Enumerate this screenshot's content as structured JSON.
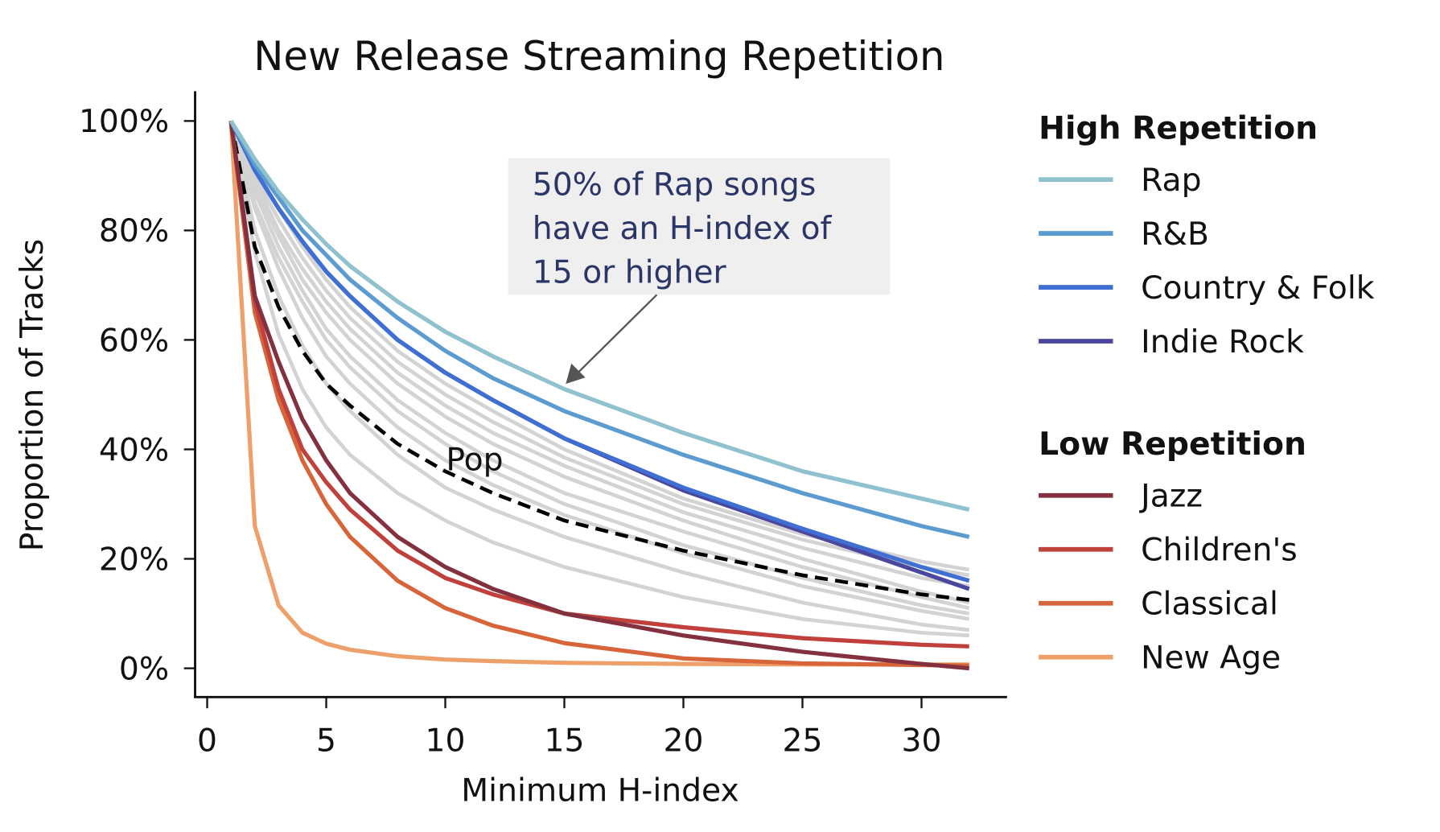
{
  "chart_data": {
    "type": "line",
    "title": "New Release Streaming Repetition",
    "xlabel": "Minimum H-index",
    "ylabel": "Proportion of Tracks",
    "xlim": [
      -0.5,
      33.5
    ],
    "ylim": [
      -5,
      106
    ],
    "xticks": [
      "0",
      "5",
      "10",
      "15",
      "20",
      "25",
      "30"
    ],
    "yticks": [
      "0%",
      "20%",
      "40%",
      "60%",
      "80%",
      "100%"
    ],
    "grid": false,
    "legend_placement": "right",
    "x": [
      1,
      2,
      3,
      4,
      5,
      6,
      8,
      10,
      12,
      15,
      20,
      25,
      30,
      32
    ],
    "background_series_color": "#d3d3d3",
    "background_series": [
      [
        100,
        91,
        84,
        77,
        71,
        66,
        58,
        52,
        47,
        40,
        31,
        24.5,
        19.5,
        18
      ],
      [
        100,
        90,
        82,
        75,
        69,
        64,
        56,
        50,
        45,
        38.5,
        30,
        23.5,
        18.5,
        17
      ],
      [
        100,
        89,
        80,
        73,
        67,
        62,
        54,
        48,
        43,
        37,
        28.5,
        22,
        16.5,
        15
      ],
      [
        100,
        88,
        79,
        71,
        65,
        60,
        52,
        46,
        41,
        35,
        27,
        20,
        14,
        12
      ],
      [
        100,
        87,
        77,
        69,
        62,
        57,
        49,
        43,
        38,
        32,
        25,
        18.5,
        13,
        11
      ],
      [
        100,
        85,
        75,
        67,
        60,
        55,
        47,
        41,
        36,
        30,
        22.5,
        16.5,
        11.5,
        10
      ],
      [
        100,
        84,
        73,
        64,
        57,
        52,
        44,
        38,
        33.5,
        28,
        21,
        15,
        10.5,
        9
      ],
      [
        100,
        80,
        68,
        59,
        52,
        47,
        39,
        33,
        29,
        24,
        17.5,
        12,
        8,
        7
      ],
      [
        100,
        76,
        61,
        51,
        44,
        39,
        32,
        27,
        23,
        18.5,
        13,
        9,
        6.5,
        6
      ]
    ],
    "pop_series": {
      "name": "Pop",
      "color": "#000000",
      "style": "dashed",
      "values": [
        100,
        77,
        66,
        58,
        52,
        48,
        41,
        36,
        32,
        27,
        21.5,
        17,
        13.5,
        12.5
      ]
    },
    "legend_groups": [
      {
        "title": "High Repetition",
        "series": [
          {
            "name": "Rap",
            "color": "#8fc1cf",
            "values": [
              100,
              93,
              87,
              82,
              77.5,
              73.5,
              67,
              61.5,
              57,
              51,
              43,
              36,
              31,
              29
            ]
          },
          {
            "name": "R&B",
            "color": "#5b9bd0",
            "values": [
              100,
              92,
              86,
              80,
              75.5,
              71,
              64,
              58,
              53,
              47,
              39,
              32,
              26,
              24
            ]
          },
          {
            "name": "Country & Folk",
            "color": "#3f6fd2",
            "values": [
              100,
              91,
              84,
              78,
              72.5,
              68,
              60,
              54,
              49,
              42,
              33,
              25.5,
              18.5,
              16
            ]
          },
          {
            "name": "Indie Rock",
            "color": "#4a479e",
            "values": [
              100,
              91,
              84,
              78,
              72.5,
              68,
              60,
              54,
              49,
              42,
              32.5,
              25,
              17.5,
              14.5
            ]
          }
        ]
      },
      {
        "title": "Low Repetition",
        "series": [
          {
            "name": "Jazz",
            "color": "#84313f",
            "values": [
              100,
              68,
              56,
              45.5,
              38,
              32,
              24,
              18.5,
              14.5,
              10,
              6,
              3,
              0.8,
              0
            ]
          },
          {
            "name": "Children's",
            "color": "#c0413b",
            "values": [
              100,
              67,
              51,
              40,
              34,
              29,
              21.5,
              16.5,
              13.5,
              10,
              7.5,
              5.5,
              4.3,
              4
            ]
          },
          {
            "name": "Classical",
            "color": "#d8653a",
            "values": [
              100,
              65,
              49,
              38,
              30,
              24,
              16,
              11,
              7.8,
              4.6,
              1.8,
              0.9,
              0.6,
              0.5
            ]
          },
          {
            "name": "New Age",
            "color": "#eda06a",
            "values": [
              100,
              26,
              11.5,
              6.5,
              4.5,
              3.4,
              2.2,
              1.6,
              1.3,
              1.0,
              0.8,
              0.7,
              0.7,
              0.7
            ]
          }
        ]
      }
    ],
    "annotation": {
      "lines": [
        "50% of Rap songs",
        "have an H-index of",
        "15 or higher"
      ],
      "points_to": {
        "x": 15,
        "y": 51
      },
      "box_color": "#efefef",
      "text_color": "#2b3566"
    },
    "pop_label": "Pop"
  }
}
